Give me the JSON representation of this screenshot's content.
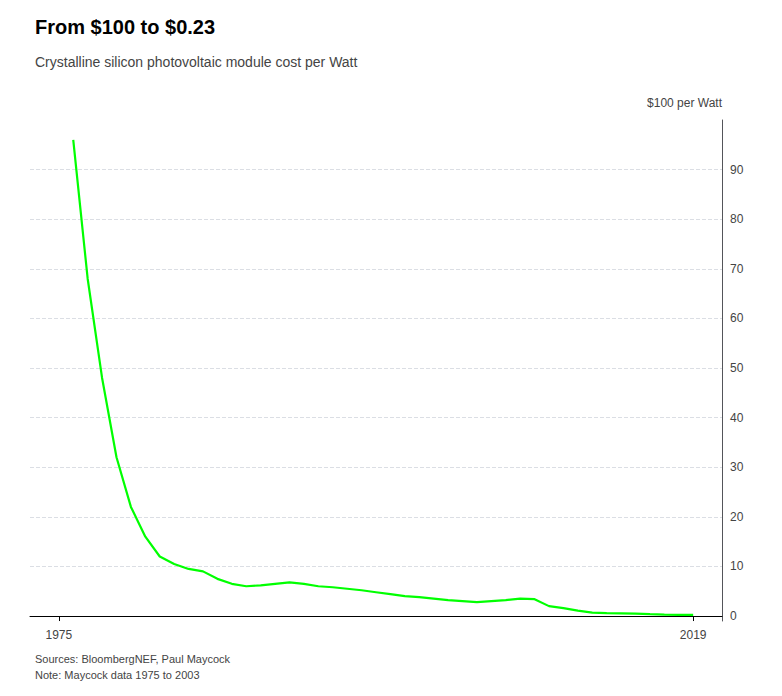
{
  "chart_data": {
    "type": "line",
    "title": "From $100 to $0.23",
    "subtitle": "Crystalline silicon photovoltaic module cost per Watt",
    "annotations": [
      "$100 per Watt"
    ],
    "source": "Sources: BloombergNEF, Paul Maycock\nNote: Maycock data 1975 to 2003",
    "color": "#00FF00",
    "grid": true,
    "xlim": [
      1973,
      2021
    ],
    "xticks": [
      1975,
      2019
    ],
    "ylim": [
      -1,
      100
    ],
    "yticks": [
      0,
      10,
      20,
      30,
      40,
      50,
      60,
      70,
      80,
      90
    ],
    "x": [
      1976,
      1977,
      1978,
      1979,
      1980,
      1981,
      1982,
      1983,
      1984,
      1985,
      1986,
      1987,
      1988,
      1989,
      1990,
      1991,
      1992,
      1993,
      1994,
      1995,
      1996,
      1997,
      1998,
      1999,
      2000,
      2001,
      2002,
      2003,
      2004,
      2005,
      2006,
      2007,
      2008,
      2009,
      2010,
      2011,
      2012,
      2013,
      2014,
      2015,
      2016,
      2017,
      2018,
      2019
    ],
    "values": [
      96.0,
      68.0,
      48.0,
      32.0,
      22.0,
      16.0,
      12.0,
      10.5,
      9.5,
      9.0,
      7.5,
      6.5,
      6.0,
      6.2,
      6.5,
      6.8,
      6.5,
      6.0,
      5.8,
      5.5,
      5.2,
      4.8,
      4.4,
      4.0,
      3.8,
      3.5,
      3.2,
      3.0,
      2.8,
      3.0,
      3.2,
      3.5,
      3.4,
      2.0,
      1.6,
      1.1,
      0.7,
      0.6,
      0.55,
      0.5,
      0.38,
      0.3,
      0.25,
      0.23
    ]
  }
}
